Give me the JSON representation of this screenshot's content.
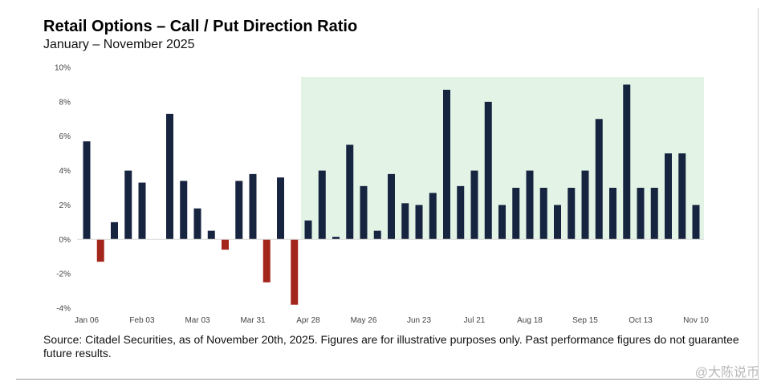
{
  "header": {
    "title": "Retail Options – Call / Put Direction Ratio",
    "subtitle": "January – November 2025"
  },
  "footer": {
    "source": "Source: Citadel Securities, as of November 20th, 2025. Figures are for illustrative purposes only. Past performance figures do not guarantee future results."
  },
  "watermark": {
    "text": "@大陈说币"
  },
  "chart_data": {
    "type": "bar",
    "title": "Retail Options – Call / Put Direction Ratio",
    "subtitle": "January – November 2025",
    "xlabel": "",
    "ylabel": "",
    "ylim": [
      -4,
      10
    ],
    "yticks": [
      {
        "value": 10,
        "label": "10%"
      },
      {
        "value": 8,
        "label": "8%"
      },
      {
        "value": 6,
        "label": "6%"
      },
      {
        "value": 4,
        "label": "4%"
      },
      {
        "value": 2,
        "label": "2%"
      },
      {
        "value": 0,
        "label": "0%"
      },
      {
        "value": -2,
        "label": "-2%"
      },
      {
        "value": -4,
        "label": "-4%"
      }
    ],
    "xticks": [
      {
        "index": 0,
        "label": "Jan 06"
      },
      {
        "index": 4,
        "label": "Feb 03"
      },
      {
        "index": 8,
        "label": "Mar 03"
      },
      {
        "index": 12,
        "label": "Mar 31"
      },
      {
        "index": 16,
        "label": "Apr 28"
      },
      {
        "index": 20,
        "label": "May 26"
      },
      {
        "index": 24,
        "label": "Jun 23"
      },
      {
        "index": 28,
        "label": "Jul 21"
      },
      {
        "index": 32,
        "label": "Aug 18"
      },
      {
        "index": 36,
        "label": "Sep 15"
      },
      {
        "index": 40,
        "label": "Oct 13"
      },
      {
        "index": 44,
        "label": "Nov 10"
      }
    ],
    "values": [
      5.7,
      -1.3,
      1.0,
      4.0,
      3.3,
      0,
      7.3,
      3.4,
      1.8,
      0.5,
      -0.6,
      3.4,
      3.8,
      -2.5,
      3.6,
      -3.8,
      1.1,
      4.0,
      0.15,
      5.5,
      3.1,
      0.5,
      3.8,
      2.1,
      2.0,
      2.7,
      8.7,
      3.1,
      4.0,
      8.0,
      2.0,
      3.0,
      4.0,
      3.0,
      2.0,
      3.0,
      4.0,
      7.0,
      3.0,
      9.0,
      3.0,
      3.0,
      5.0,
      5.0,
      2.0
    ],
    "highlight_range": {
      "start_index": 16,
      "end_index": 44
    },
    "grid": false,
    "legend": "none",
    "colors": {
      "positive": "#172440",
      "negative": "#a3261c",
      "highlight": "#e3f4e7"
    }
  }
}
